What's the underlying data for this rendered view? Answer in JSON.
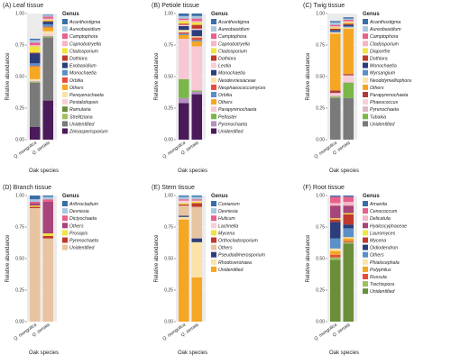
{
  "chart_data": [
    {
      "type": "bar",
      "panel_letter": "(A)",
      "title": "Leaf tissue",
      "categories": [
        "Q. mongolica",
        "Q. serrata"
      ],
      "xlabel": "Oak species",
      "ylabel": "Relative abundance",
      "ylim": [
        0,
        1
      ],
      "y_ticks": [
        "0.00",
        "0.25",
        "0.50",
        "0.75",
        "1.00"
      ],
      "legend_title": "Genus",
      "series": [
        {
          "name": "Acanthostigma",
          "color": "#3b6ea8",
          "values": [
            0.01,
            0.005
          ]
        },
        {
          "name": "Aureobasidium",
          "color": "#a8c8e0",
          "values": [
            0.02,
            0.01
          ]
        },
        {
          "name": "Camptophora",
          "color": "#e8608a",
          "values": [
            0.02,
            0.015
          ]
        },
        {
          "name": "Capnobotryella",
          "color": "#f4b6c8",
          "values": [
            0.01,
            0.01
          ]
        },
        {
          "name": "Cladosporium",
          "color": "#f0e442",
          "values": [
            0.05,
            0.01
          ]
        },
        {
          "name": "Dothiora",
          "color": "#c0392b",
          "values": [
            0.005,
            0.005
          ]
        },
        {
          "name": "Exobasidium",
          "color": "#2c3e7a",
          "values": [
            0.08,
            0.02
          ]
        },
        {
          "name": "Monochaetia",
          "color": "#5a8fc8",
          "values": [
            0.02,
            0.02
          ]
        },
        {
          "name": "Orbilia",
          "color": "#e74c3c",
          "values": [
            0.005,
            0.005
          ]
        },
        {
          "name": "Others",
          "color": "#f5a623",
          "values": [
            0.1,
            0.03
          ]
        },
        {
          "name": "Pereyenochaeta",
          "color": "#fbe3a8",
          "values": [
            0.01,
            0.02
          ]
        },
        {
          "name": "Pestalotiopsis",
          "color": "#f7cfd8",
          "values": [
            0.01,
            0.02
          ]
        },
        {
          "name": "Ramularia",
          "color": "#6a8e3a",
          "values": [
            0.005,
            0.005
          ]
        },
        {
          "name": "Strelitziana",
          "color": "#a0c060",
          "values": [
            0.005,
            0.005
          ]
        },
        {
          "name": "Unidentified",
          "color": "#7a7a7a",
          "values": [
            0.35,
            0.5
          ]
        },
        {
          "name": "Zeloasperisporium",
          "color": "#4b1a5a",
          "values": [
            0.1,
            0.31
          ]
        }
      ]
    },
    {
      "type": "bar",
      "panel_letter": "(B)",
      "title": "Petiole tissue",
      "categories": [
        "Q. mongolica",
        "Q. serrata"
      ],
      "xlabel": "Oak species",
      "ylabel": "Relative abundance",
      "ylim": [
        0,
        1
      ],
      "y_ticks": [
        "0.00",
        "0.25",
        "0.50",
        "0.75",
        "1.00"
      ],
      "legend_title": "Genus",
      "series": [
        {
          "name": "Acanthostigma",
          "color": "#3b6ea8",
          "values": [
            0.02,
            0.02
          ]
        },
        {
          "name": "Aureobasidium",
          "color": "#a8c8e0",
          "values": [
            0.02,
            0.02
          ]
        },
        {
          "name": "Camptophora",
          "color": "#e8608a",
          "values": [
            0.01,
            0.02
          ]
        },
        {
          "name": "Capnobotryella",
          "color": "#f4b6c8",
          "values": [
            0.01,
            0.01
          ]
        },
        {
          "name": "Cladosporium",
          "color": "#f0e442",
          "values": [
            0.02,
            0.02
          ]
        },
        {
          "name": "Dothiora",
          "color": "#c0392b",
          "values": [
            0.01,
            0.03
          ]
        },
        {
          "name": "Leotia",
          "color": "#f7cfd8",
          "values": [
            0.01,
            0.01
          ]
        },
        {
          "name": "Monochaetia",
          "color": "#2c3e7a",
          "values": [
            0.03,
            0.05
          ]
        },
        {
          "name": "Neodevriesiaceae",
          "color": "#fbe3a8",
          "values": [
            0.02,
            0.01
          ]
        },
        {
          "name": "Neophaeococcomyces",
          "color": "#e74c3c",
          "values": [
            0.01,
            0.02
          ]
        },
        {
          "name": "Orbilia",
          "color": "#5a8fc8",
          "values": [
            0.01,
            0.01
          ]
        },
        {
          "name": "Others",
          "color": "#f5a623",
          "values": [
            0.03,
            0.04
          ]
        },
        {
          "name": "Parapyrenochaeta",
          "color": "#f9c7d3",
          "values": [
            0.32,
            0.35
          ]
        },
        {
          "name": "Peltaster",
          "color": "#7ab648",
          "values": [
            0.15,
            0.01
          ]
        },
        {
          "name": "Pyrenochaeta",
          "color": "#b58fc2",
          "values": [
            0.04,
            0.02
          ]
        },
        {
          "name": "Unidentified",
          "color": "#4b1a5a",
          "values": [
            0.29,
            0.36
          ]
        }
      ]
    },
    {
      "type": "bar",
      "panel_letter": "(C)",
      "title": "Twig tissue",
      "categories": [
        "Q. mongolica",
        "Q. serrata"
      ],
      "xlabel": "Oak species",
      "ylabel": "Relative abundance",
      "ylim": [
        0,
        1
      ],
      "y_ticks": [
        "0.00",
        "0.25",
        "0.50",
        "0.75",
        "1.00"
      ],
      "legend_title": "Genus",
      "series": [
        {
          "name": "Acanthostigma",
          "color": "#3b6ea8",
          "values": [
            0.01,
            0.01
          ]
        },
        {
          "name": "Aureobasidium",
          "color": "#a8c8e0",
          "values": [
            0.02,
            0.01
          ]
        },
        {
          "name": "Camptophora",
          "color": "#e8608a",
          "values": [
            0.01,
            0.01
          ]
        },
        {
          "name": "Cladosporium",
          "color": "#f4b6c8",
          "values": [
            0.01,
            0.01
          ]
        },
        {
          "name": "Diaporthe",
          "color": "#f0e442",
          "values": [
            0.01,
            0.01
          ]
        },
        {
          "name": "Dothiora",
          "color": "#c0392b",
          "values": [
            0.01,
            0.01
          ]
        },
        {
          "name": "Monochaetia",
          "color": "#2c3e7a",
          "values": [
            0.01,
            0.01
          ]
        },
        {
          "name": "Myrsangium",
          "color": "#5a8fc8",
          "values": [
            0.01,
            0.01
          ]
        },
        {
          "name": "Neodidymelliophora",
          "color": "#fbe3a8",
          "values": [
            0.01,
            0.01
          ]
        },
        {
          "name": "Others",
          "color": "#f5a623",
          "values": [
            0.45,
            0.36
          ]
        },
        {
          "name": "Parapyrenochaeta",
          "color": "#b03a3a",
          "values": [
            0.02,
            0.01
          ]
        },
        {
          "name": "Phaeococcus",
          "color": "#f7cfd8",
          "values": [
            0.02,
            0.05
          ]
        },
        {
          "name": "Pyrenochaeta",
          "color": "#e0b6c8",
          "values": [
            0.01,
            0.01
          ]
        },
        {
          "name": "Tubakia",
          "color": "#7ab648",
          "values": [
            0.01,
            0.12
          ]
        },
        {
          "name": "Unidentified",
          "color": "#7a7a7a",
          "values": [
            0.33,
            0.33
          ]
        }
      ]
    },
    {
      "type": "bar",
      "panel_letter": "(D)",
      "title": "Branch tissue",
      "categories": [
        "Q. mongolica",
        "Q. serrata"
      ],
      "xlabel": "Oak species",
      "ylabel": "Relative abundance",
      "ylim": [
        0,
        1
      ],
      "y_ticks": [
        "0.00",
        "0.25",
        "0.50",
        "0.75",
        "1.00"
      ],
      "legend_title": "Genus",
      "series": [
        {
          "name": "Arthrocladium",
          "color": "#3b6ea8",
          "values": [
            0.03,
            0.01
          ]
        },
        {
          "name": "Devriesia",
          "color": "#a8c8e0",
          "values": [
            0.02,
            0.02
          ]
        },
        {
          "name": "Dictyochaeta",
          "color": "#e8608a",
          "values": [
            0.01,
            0.02
          ]
        },
        {
          "name": "Others",
          "color": "#a8457a",
          "values": [
            0.02,
            0.25
          ]
        },
        {
          "name": "Prosopis",
          "color": "#f0e442",
          "values": [
            0.01,
            0.02
          ]
        },
        {
          "name": "Pyrenochaeta",
          "color": "#c0392b",
          "values": [
            0.01,
            0.02
          ]
        },
        {
          "name": "Unidentified",
          "color": "#e8c4a0",
          "values": [
            0.9,
            0.66
          ]
        }
      ]
    },
    {
      "type": "bar",
      "panel_letter": "(E)",
      "title": "Stem tissue",
      "categories": [
        "Q. mongolica",
        "Q. serrata"
      ],
      "xlabel": "Oak species",
      "ylabel": "Relative abundance",
      "ylim": [
        0,
        1
      ],
      "y_ticks": [
        "0.00",
        "0.25",
        "0.50",
        "0.75",
        "1.00"
      ],
      "legend_title": "Genus",
      "series": [
        {
          "name": "Coniarium",
          "color": "#3b6ea8",
          "values": [
            0.01,
            0.01
          ]
        },
        {
          "name": "Devriesia",
          "color": "#a8c8e0",
          "values": [
            0.02,
            0.02
          ]
        },
        {
          "name": "Hulicum",
          "color": "#e8608a",
          "values": [
            0.01,
            0.01
          ]
        },
        {
          "name": "Lachnella",
          "color": "#f7cfd8",
          "values": [
            0.02,
            0.01
          ]
        },
        {
          "name": "Mycena",
          "color": "#f0e442",
          "values": [
            0.01,
            0.01
          ]
        },
        {
          "name": "Orthocladosporium",
          "color": "#c0392b",
          "values": [
            0.01,
            0.03
          ]
        },
        {
          "name": "Others",
          "color": "#e8c4a0",
          "values": [
            0.08,
            0.25
          ]
        },
        {
          "name": "Pseudodimerosporium",
          "color": "#2c3e7a",
          "values": [
            0.01,
            0.03
          ]
        },
        {
          "name": "Rhodoveronaea",
          "color": "#fbe3a8",
          "values": [
            0.02,
            0.28
          ]
        },
        {
          "name": "Unidentified",
          "color": "#f5a623",
          "values": [
            0.81,
            0.35
          ]
        }
      ]
    },
    {
      "type": "bar",
      "panel_letter": "(F)",
      "title": "Root tissue",
      "categories": [
        "Q. mongolica",
        "Q. serrata"
      ],
      "xlabel": "Oak species",
      "ylabel": "Relative abundance",
      "ylim": [
        0,
        1
      ],
      "y_ticks": [
        "0.00",
        "0.25",
        "0.50",
        "0.75",
        "1.00"
      ],
      "legend_title": "Genus",
      "series": [
        {
          "name": "Amanita",
          "color": "#3b6ea8",
          "values": [
            0.01,
            0.01
          ]
        },
        {
          "name": "Cenococcum",
          "color": "#e8608a",
          "values": [
            0.05,
            0.04
          ]
        },
        {
          "name": "Delicatula",
          "color": "#f4b6c8",
          "values": [
            0.02,
            0.03
          ]
        },
        {
          "name": "Hyaloscyphaceae",
          "color": "#a8457a",
          "values": [
            0.1,
            0.06
          ]
        },
        {
          "name": "Lauromyces",
          "color": "#f0e442",
          "values": [
            0.01,
            0.01
          ]
        },
        {
          "name": "Mycena",
          "color": "#c0392b",
          "values": [
            0.02,
            0.08
          ]
        },
        {
          "name": "Oidiodendron",
          "color": "#2c3e7a",
          "values": [
            0.13,
            0.03
          ]
        },
        {
          "name": "Others",
          "color": "#5a8fc8",
          "values": [
            0.08,
            0.07
          ]
        },
        {
          "name": "Phialocephala",
          "color": "#fbe3a8",
          "values": [
            0.02,
            0.01
          ]
        },
        {
          "name": "Polyphilus",
          "color": "#f5a623",
          "values": [
            0.03,
            0.02
          ]
        },
        {
          "name": "Russula",
          "color": "#e74c3c",
          "values": [
            0.02,
            0.01
          ]
        },
        {
          "name": "Trechispora",
          "color": "#a0c060",
          "values": [
            0.02,
            0.01
          ]
        },
        {
          "name": "Unidentified",
          "color": "#6a8e3a",
          "values": [
            0.49,
            0.62
          ]
        }
      ]
    }
  ]
}
